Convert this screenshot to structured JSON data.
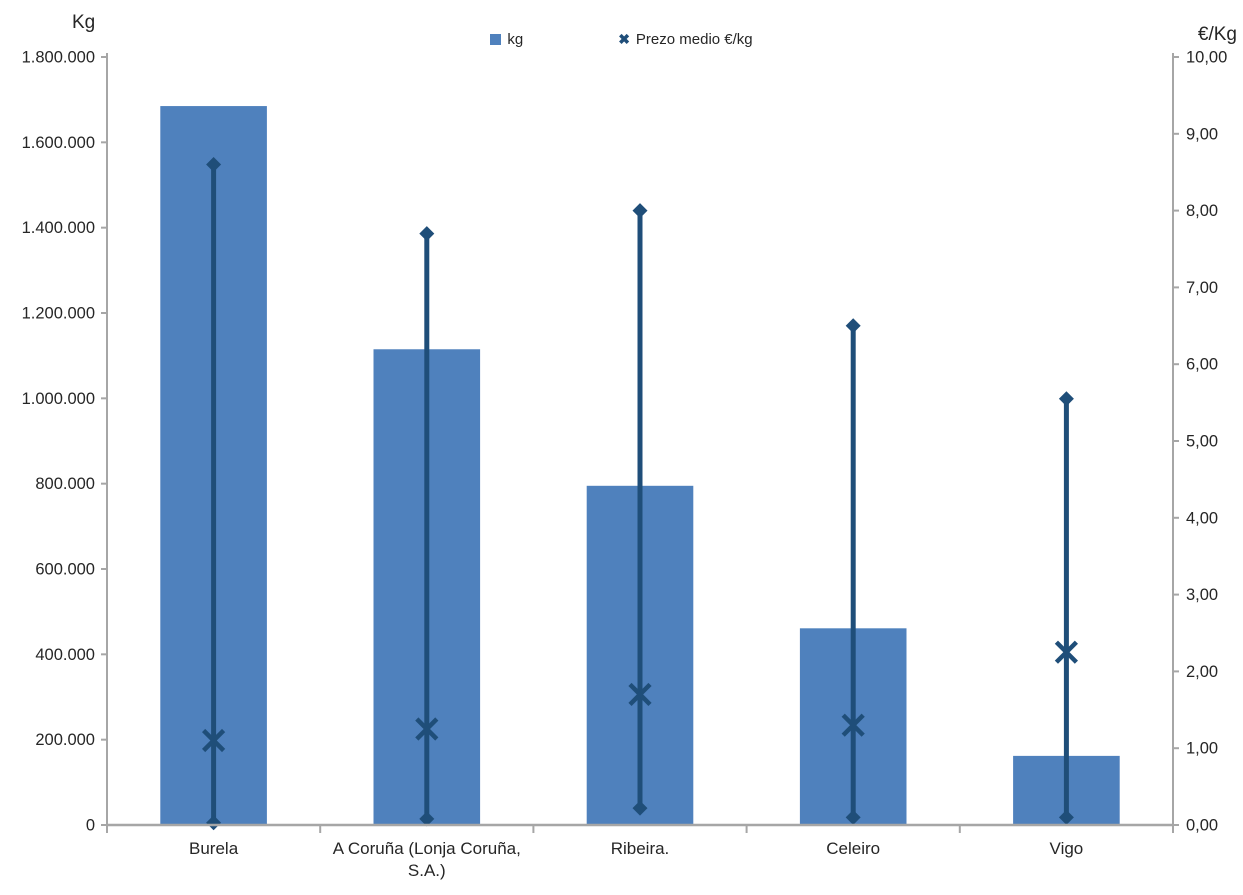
{
  "chart_data": {
    "type": "bar",
    "subtype": "bar-with-high-low-mean-lines",
    "categories": [
      "Burela",
      "A Coruña (Lonja Coruña, S.A.)",
      "Ribeira.",
      "Celeiro",
      "Vigo"
    ],
    "series": [
      {
        "name": "kg",
        "type": "bar",
        "axis": "left",
        "values": [
          1685000,
          1115000,
          795000,
          461000,
          162000
        ]
      },
      {
        "name": "Prezo medio €/kg",
        "type": "high-low-mean",
        "axis": "right",
        "max": [
          8.6,
          7.7,
          8.0,
          6.5,
          5.55
        ],
        "mean": [
          1.1,
          1.25,
          1.7,
          1.3,
          2.25
        ],
        "min": [
          0.03,
          0.08,
          0.22,
          0.1,
          0.1
        ]
      }
    ],
    "left_axis": {
      "title": "Kg",
      "min": 0,
      "max": 1800000,
      "step": 200000,
      "tick_labels": [
        "0",
        "200.000",
        "400.000",
        "600.000",
        "800.000",
        "1.000.000",
        "1.200.000",
        "1.400.000",
        "1.600.000",
        "1.800.000"
      ]
    },
    "right_axis": {
      "title": "€/Kg",
      "min": 0,
      "max": 10,
      "step": 1,
      "tick_labels": [
        "0,00",
        "1,00",
        "2,00",
        "3,00",
        "4,00",
        "5,00",
        "6,00",
        "7,00",
        "8,00",
        "9,00",
        "10,00"
      ]
    },
    "legend": [
      {
        "label": "kg",
        "marker": "square"
      },
      {
        "label": "Prezo medio €/kg",
        "marker": "x"
      }
    ],
    "legend_position": "top-center",
    "grid": false,
    "colors": {
      "bar": "#4F81BD",
      "line": "#1F4E79",
      "axis": "#A6A6A6",
      "text": "#262626"
    }
  }
}
